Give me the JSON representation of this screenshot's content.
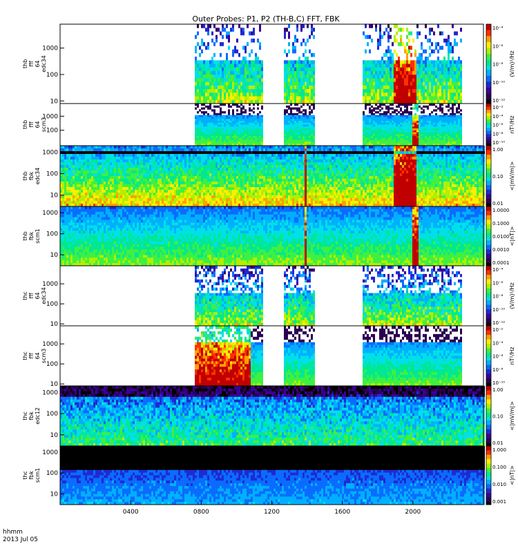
{
  "chart_data": {
    "type": "heatmap",
    "title": "Outer Probes: P1, P2 (TH-B,C) FFT, FBK",
    "date_label_top": "hhmm",
    "date_label_bottom": "2013 Jul 05",
    "x_ticks": [
      "0400",
      "0800",
      "1200",
      "1600",
      "2000"
    ],
    "x_tick_hours": [
      4,
      8,
      12,
      16,
      20
    ],
    "x_range_hours": [
      0,
      24
    ],
    "y_scale": "log",
    "colormap": [
      "#000000",
      "#2a0050",
      "#3a0098",
      "#1f2ad0",
      "#0a6cff",
      "#00b0ff",
      "#00e0e8",
      "#00e890",
      "#40f040",
      "#b0f000",
      "#ffee00",
      "#ffa000",
      "#ff3000",
      "#c00000"
    ],
    "panels": [
      {
        "name": "thb-fff-64-edc34",
        "label": [
          "thb",
          "fff",
          "64",
          "edc34"
        ],
        "y_ticks": [
          "10",
          "100",
          "1000"
        ],
        "y_tick_values": [
          10,
          100,
          1000
        ],
        "y_range": [
          8,
          8000
        ],
        "colorbar_labels": [
          "10⁻⁴",
          "10⁻⁶",
          "10⁻⁸",
          "10⁻¹⁰",
          "10⁻¹²"
        ],
        "colorbar_title": "(V/m)²/Hz",
        "segments_hours": [
          [
            7.6,
            11.4
          ],
          [
            12.6,
            14.4
          ],
          [
            17.1,
            22.7
          ]
        ],
        "style": "sparse-spikes",
        "enhancements": [
          {
            "hour_start": 18.8,
            "hour_end": 20.2
          }
        ]
      },
      {
        "name": "thb-fff-64-scm3",
        "label": [
          "thb",
          "fff",
          "64",
          "scm3"
        ],
        "y_ticks": [
          "10",
          "100",
          "1000"
        ],
        "y_tick_values": [
          10,
          100,
          1000
        ],
        "y_range": [
          8,
          8000
        ],
        "colorbar_labels": [
          "10⁻²",
          "10⁻⁴",
          "10⁻⁶",
          "10⁻⁸",
          "10⁻¹⁰"
        ],
        "colorbar_title": "nT²/Hz",
        "segments_hours": [
          [
            7.6,
            11.4
          ],
          [
            12.6,
            14.4
          ],
          [
            17.1,
            22.7
          ]
        ],
        "style": "banded",
        "enhancements": [
          {
            "hour_start": 19.9,
            "hour_end": 20.3
          }
        ]
      },
      {
        "name": "thb-fbk-edc34",
        "label": [
          "thb",
          "fbk",
          "edc34"
        ],
        "y_ticks": [
          "10",
          "100",
          "1000"
        ],
        "y_tick_values": [
          10,
          100,
          1000
        ],
        "y_range": [
          3,
          2000
        ],
        "colorbar_labels": [
          "1.00",
          "0.10",
          "0.01"
        ],
        "colorbar_title": "<|mV/m|>",
        "segments_hours": [
          [
            0,
            24
          ]
        ],
        "style": "fbk-e",
        "enhancements": [
          {
            "hour_start": 13.8,
            "hour_end": 13.95
          },
          {
            "hour_start": 18.8,
            "hour_end": 20.2
          }
        ]
      },
      {
        "name": "thb-fbk-scm1",
        "label": [
          "thb",
          "fbk",
          "scm1"
        ],
        "y_ticks": [
          "10",
          "100",
          "1000"
        ],
        "y_tick_values": [
          10,
          100,
          1000
        ],
        "y_range": [
          3,
          2000
        ],
        "colorbar_labels": [
          "1.0000",
          "0.1000",
          "0.0100",
          "0.0010",
          "0.0001"
        ],
        "colorbar_title": "<|nT|>",
        "segments_hours": [
          [
            0,
            24
          ]
        ],
        "style": "fbk-b",
        "enhancements": [
          {
            "hour_start": 13.8,
            "hour_end": 13.95
          },
          {
            "hour_start": 19.9,
            "hour_end": 20.3
          }
        ]
      },
      {
        "name": "thc-fff-64-edc34",
        "label": [
          "thc",
          "fff",
          "64",
          "edc34"
        ],
        "y_ticks": [
          "10",
          "100",
          "1000"
        ],
        "y_tick_values": [
          10,
          100,
          1000
        ],
        "y_range": [
          8,
          8000
        ],
        "colorbar_labels": [
          "10⁻⁴",
          "10⁻⁶",
          "10⁻⁸",
          "10⁻¹⁰",
          "10⁻¹²"
        ],
        "colorbar_title": "(V/m)²/Hz",
        "segments_hours": [
          [
            7.6,
            11.4
          ],
          [
            12.6,
            14.4
          ],
          [
            17.1,
            22.7
          ]
        ],
        "style": "dense-spikes",
        "enhancements": []
      },
      {
        "name": "thc-fff-64-scm3",
        "label": [
          "thc",
          "fff",
          "64",
          "scm3"
        ],
        "y_ticks": [
          "10",
          "100",
          "1000"
        ],
        "y_tick_values": [
          10,
          100,
          1000
        ],
        "y_range": [
          8,
          8000
        ],
        "colorbar_labels": [
          "10⁻²",
          "10⁻⁴",
          "10⁻⁶",
          "10⁻⁸",
          "10⁻¹⁰"
        ],
        "colorbar_title": "nT²/Hz",
        "segments_hours": [
          [
            7.6,
            11.4
          ],
          [
            12.6,
            14.4
          ],
          [
            17.1,
            22.7
          ]
        ],
        "style": "banded",
        "enhancements": [
          {
            "hour_start": 7.6,
            "hour_end": 10.8
          }
        ]
      },
      {
        "name": "thc-fbk-edc12",
        "label": [
          "thc",
          "fbk",
          "edc12"
        ],
        "y_ticks": [
          "10",
          "100",
          "1000"
        ],
        "y_tick_values": [
          10,
          100,
          1000
        ],
        "y_range": [
          3,
          2000
        ],
        "colorbar_labels": [
          "1.00",
          "0.10",
          "0.01"
        ],
        "colorbar_title": "<|mV/m|>",
        "segments_hours": [
          [
            0,
            24
          ]
        ],
        "style": "fbk-e2",
        "enhancements": []
      },
      {
        "name": "thc-fbk-scm1",
        "label": [
          "thc",
          "fbk",
          "scm1"
        ],
        "y_ticks": [
          "10",
          "100",
          "1000"
        ],
        "y_tick_values": [
          10,
          100,
          1000
        ],
        "y_range": [
          3,
          2000
        ],
        "colorbar_labels": [
          "1.000",
          "0.100",
          "0.010",
          "0.001"
        ],
        "colorbar_title": "<|nT|>",
        "segments_hours": [
          [
            0,
            24
          ]
        ],
        "style": "fbk-b2",
        "enhancements": []
      }
    ]
  }
}
